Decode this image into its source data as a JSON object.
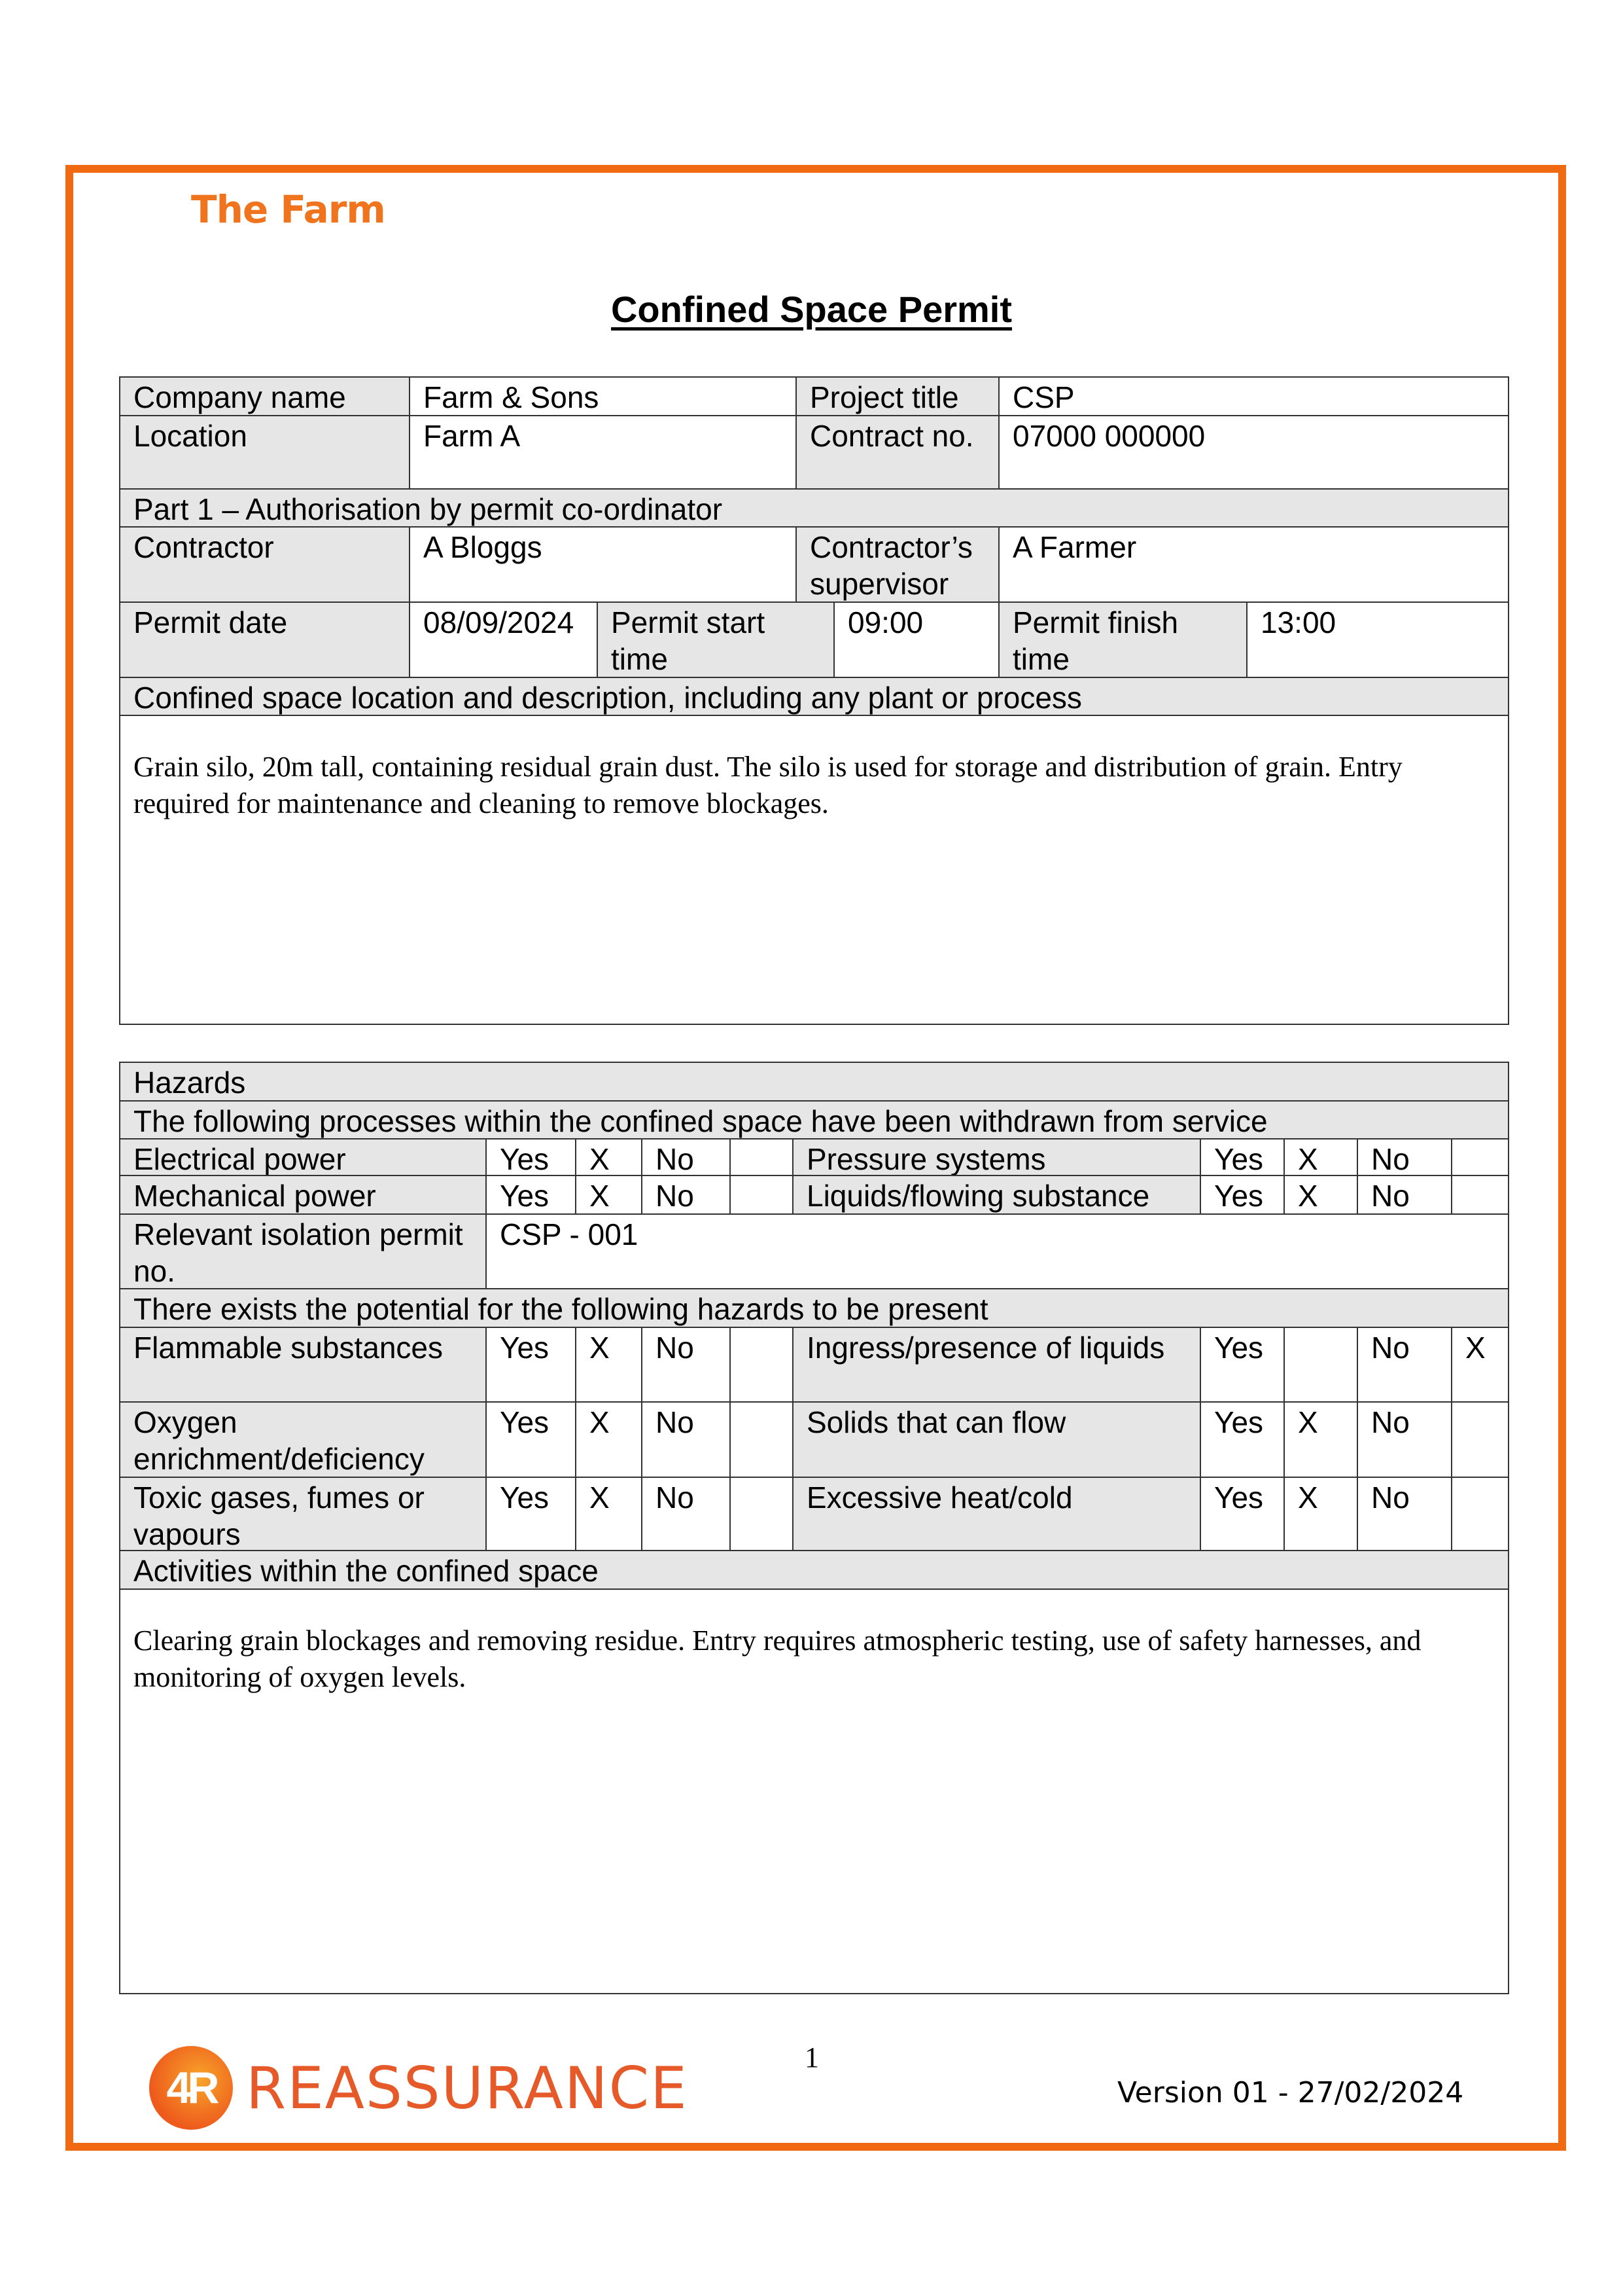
{
  "header": {
    "brand": "The Farm",
    "title": "Confined Space Permit"
  },
  "details": {
    "company_label": "Company name",
    "company": "Farm & Sons",
    "project_label": "Project title",
    "project": "CSP",
    "location_label": "Location",
    "location": "Farm A",
    "contract_label": "Contract no.",
    "contract": "07000 000000",
    "part1": "Part 1 – Authorisation by permit co-ordinator",
    "contractor_label": "Contractor",
    "contractor": "A Bloggs",
    "supervisor_label": "Contractor’s supervisor",
    "supervisor": "A Farmer",
    "date_label": "Permit date",
    "date": "08/09/2024",
    "start_label": "Permit start time",
    "start": "09:00",
    "finish_label": "Permit finish time",
    "finish": "13:00",
    "location_desc_heading": "Confined space location and description, including any plant or process",
    "location_desc": "Grain silo, 20m tall, containing residual grain dust. The silo is used for storage and distribution of grain. Entry required for maintenance and cleaning to remove blockages."
  },
  "hazards": {
    "heading": "Hazards",
    "withdrawn_heading": "The following processes within the confined space have been withdrawn from service",
    "withdrawn": [
      {
        "l": {
          "label": "Electrical power",
          "yes": "Yes",
          "yes_mark": "X",
          "no": "No",
          "no_mark": ""
        },
        "r": {
          "label": "Pressure systems",
          "yes": "Yes",
          "yes_mark": "X",
          "no": "No",
          "no_mark": ""
        }
      },
      {
        "l": {
          "label": "Mechanical power",
          "yes": "Yes",
          "yes_mark": "X",
          "no": "No",
          "no_mark": ""
        },
        "r": {
          "label": "Liquids/flowing substance",
          "yes": "Yes",
          "yes_mark": "X",
          "no": "No",
          "no_mark": ""
        }
      }
    ],
    "isolation_label": "Relevant isolation permit no.",
    "isolation": "CSP - 001",
    "potential_heading": "There exists the potential for the following hazards to be present",
    "potential": [
      {
        "l": {
          "label": "Flammable substances",
          "yes": "Yes",
          "yes_mark": "X",
          "no": "No",
          "no_mark": ""
        },
        "r": {
          "label": "Ingress/presence of liquids",
          "yes": "Yes",
          "yes_mark": "",
          "no": "No",
          "no_mark": "X"
        }
      },
      {
        "l": {
          "label": "Oxygen enrichment/deficiency",
          "yes": "Yes",
          "yes_mark": "X",
          "no": "No",
          "no_mark": ""
        },
        "r": {
          "label": "Solids that can flow",
          "yes": "Yes",
          "yes_mark": "X",
          "no": "No",
          "no_mark": ""
        }
      },
      {
        "l": {
          "label": "Toxic gases, fumes or vapours",
          "yes": "Yes",
          "yes_mark": "X",
          "no": "No",
          "no_mark": ""
        },
        "r": {
          "label": "Excessive heat/cold",
          "yes": "Yes",
          "yes_mark": "X",
          "no": "No",
          "no_mark": ""
        }
      }
    ],
    "activities_heading": "Activities within the confined space",
    "activities": "Clearing grain blockages and removing residue. Entry requires atmospheric testing, use of safety harnesses, and monitoring of oxygen levels."
  },
  "footer": {
    "page": "1",
    "version": "Version 01 - 27/02/2024",
    "logo_mark": "4R",
    "logo_text": "REASSURANCE"
  },
  "colors": {
    "accent": "#f06a12",
    "label_bg": "#e6e6e6"
  }
}
